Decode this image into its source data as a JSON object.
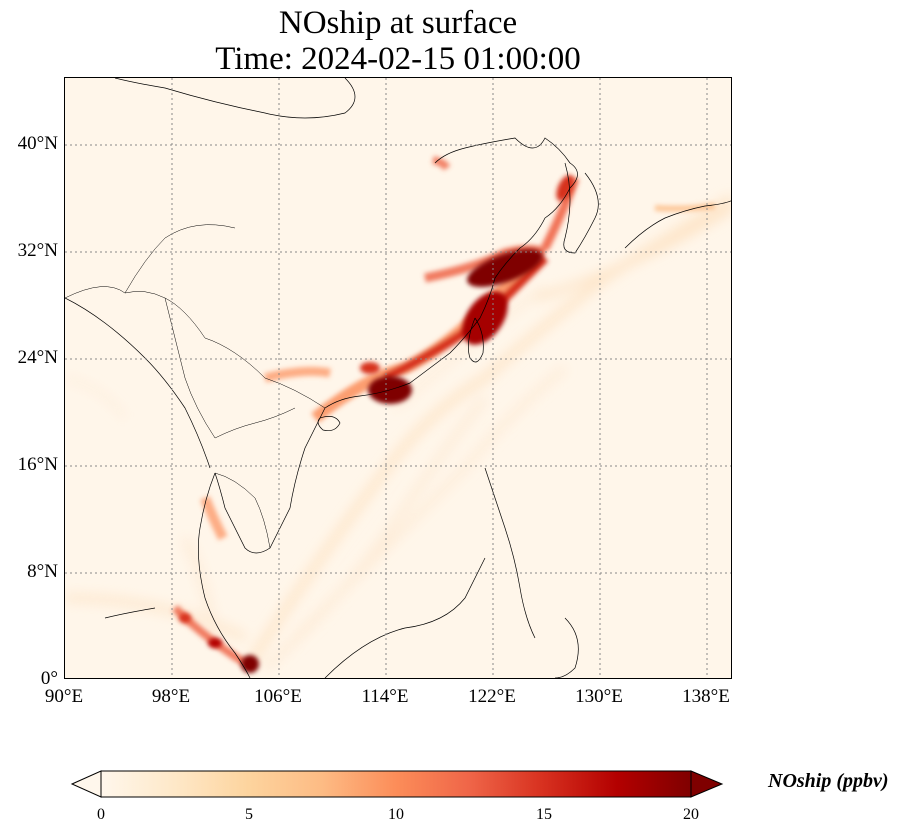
{
  "title": {
    "line1": "NOship at surface",
    "line2": "Time: 2024-02-15 01:00:00"
  },
  "map": {
    "projection": "PlateCarree",
    "lon_range": [
      90,
      140
    ],
    "lat_range": [
      0,
      45
    ],
    "gridlines": "dotted",
    "coastlines": true,
    "borders": true
  },
  "axes": {
    "x_ticks": [
      "90°E",
      "98°E",
      "106°E",
      "114°E",
      "122°E",
      "130°E",
      "138°E"
    ],
    "y_ticks": [
      "0°",
      "8°N",
      "16°N",
      "24°N",
      "32°N",
      "40°N"
    ]
  },
  "colorbar": {
    "label": "NOship (ppbv)",
    "ticks": [
      "0",
      "5",
      "10",
      "15",
      "20"
    ],
    "range": [
      0,
      20
    ],
    "colormap": "OrRd",
    "extend": "both",
    "colors": [
      "#fff7ec",
      "#fee8c8",
      "#fdd49e",
      "#fdbb84",
      "#fc8d59",
      "#ef6548",
      "#d7301f",
      "#b30000",
      "#7f0000"
    ]
  },
  "field_hotspots": [
    {
      "region": "Pearl River Delta",
      "lon": 113.5,
      "lat": 22.3,
      "level": "max"
    },
    {
      "region": "Yangtze River Delta",
      "lon": 122.0,
      "lat": 31.0,
      "level": "max"
    },
    {
      "region": "Singapore Strait",
      "lon": 103.8,
      "lat": 1.2,
      "level": "max"
    },
    {
      "region": "Korea west coast",
      "lon": 126.5,
      "lat": 36.0,
      "level": "high"
    },
    {
      "region": "Bohai Bay",
      "lon": 118.0,
      "lat": 39.0,
      "level": "medium"
    },
    {
      "region": "Gulf of Thailand",
      "lon": 100.5,
      "lat": 13.5,
      "level": "medium"
    }
  ]
}
